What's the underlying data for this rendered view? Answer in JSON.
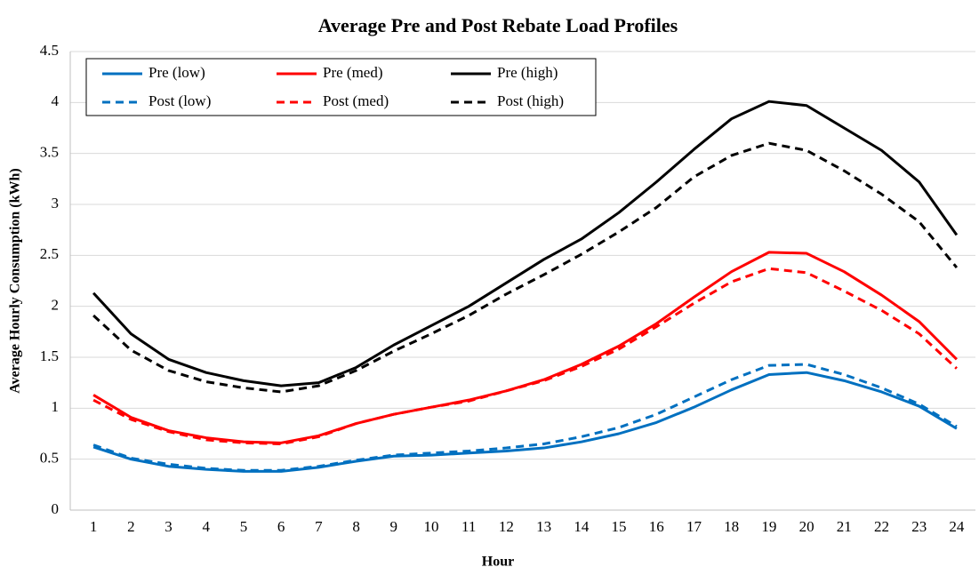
{
  "chart_data": {
    "type": "line",
    "title": "Average Pre and Post Rebate Load Profiles",
    "x_label": "Hour",
    "y_label": "Average Hourly Consumption (kWh)",
    "categories": [
      1,
      2,
      3,
      4,
      5,
      6,
      7,
      8,
      9,
      10,
      11,
      12,
      13,
      14,
      15,
      16,
      17,
      18,
      19,
      20,
      21,
      22,
      23,
      24
    ],
    "series": [
      {
        "name": "Pre (low)",
        "color": "#0070c0",
        "dashed": false,
        "values": [
          0.62,
          0.5,
          0.43,
          0.4,
          0.38,
          0.38,
          0.42,
          0.48,
          0.53,
          0.54,
          0.56,
          0.58,
          0.61,
          0.67,
          0.75,
          0.86,
          1.01,
          1.18,
          1.33,
          1.35,
          1.27,
          1.16,
          1.02,
          0.8
        ]
      },
      {
        "name": "Pre (med)",
        "color": "#ff0000",
        "dashed": false,
        "values": [
          1.13,
          0.91,
          0.78,
          0.71,
          0.67,
          0.66,
          0.73,
          0.85,
          0.94,
          1.01,
          1.08,
          1.17,
          1.28,
          1.43,
          1.61,
          1.83,
          2.09,
          2.34,
          2.53,
          2.52,
          2.34,
          2.11,
          1.85,
          1.48
        ]
      },
      {
        "name": "Pre (high)",
        "color": "#000000",
        "dashed": false,
        "values": [
          2.13,
          1.73,
          1.48,
          1.35,
          1.27,
          1.22,
          1.25,
          1.4,
          1.62,
          1.81,
          2.0,
          2.23,
          2.46,
          2.66,
          2.92,
          3.22,
          3.54,
          3.84,
          4.01,
          3.97,
          3.75,
          3.53,
          3.22,
          2.7
        ]
      },
      {
        "name": "Post (low)",
        "color": "#0070c0",
        "dashed": true,
        "values": [
          0.64,
          0.51,
          0.45,
          0.41,
          0.39,
          0.39,
          0.43,
          0.49,
          0.54,
          0.56,
          0.58,
          0.61,
          0.65,
          0.72,
          0.81,
          0.94,
          1.11,
          1.28,
          1.42,
          1.43,
          1.33,
          1.2,
          1.04,
          0.82
        ]
      },
      {
        "name": "Post (med)",
        "color": "#ff0000",
        "dashed": true,
        "values": [
          1.08,
          0.89,
          0.77,
          0.69,
          0.66,
          0.65,
          0.72,
          0.85,
          0.94,
          1.01,
          1.07,
          1.17,
          1.27,
          1.41,
          1.58,
          1.8,
          2.03,
          2.24,
          2.37,
          2.33,
          2.15,
          1.96,
          1.73,
          1.39
        ]
      },
      {
        "name": "Post (high)",
        "color": "#000000",
        "dashed": true,
        "values": [
          1.91,
          1.57,
          1.37,
          1.26,
          1.2,
          1.16,
          1.22,
          1.37,
          1.56,
          1.73,
          1.91,
          2.12,
          2.31,
          2.51,
          2.73,
          2.97,
          3.27,
          3.48,
          3.6,
          3.53,
          3.33,
          3.1,
          2.83,
          2.38
        ]
      }
    ],
    "ylim": [
      0,
      4.5
    ],
    "yticks": [
      0,
      0.5,
      1,
      1.5,
      2,
      2.5,
      3,
      3.5,
      4,
      4.5
    ],
    "grid": true,
    "legend": "top-left"
  }
}
